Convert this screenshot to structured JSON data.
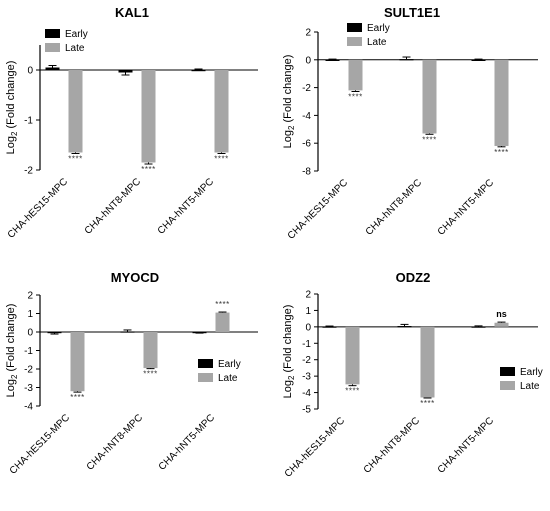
{
  "legend": {
    "early_label": "Early",
    "late_label": "Late"
  },
  "colors": {
    "early": "#000000",
    "late": "#a6a6a6",
    "axis": "#000000"
  },
  "chart_data": [
    {
      "type": "bar",
      "title": "KAL1",
      "ylabel": "Log2 (Fold change)",
      "ylim": [
        -2,
        0.5
      ],
      "yticks": [
        -2,
        -1,
        0
      ],
      "categories": [
        "CHA-hES15-MPC",
        "CHA-hNT8-MPC",
        "CHA-hNT5-MPC"
      ],
      "series": [
        {
          "name": "Early",
          "values": [
            0.05,
            -0.05,
            0.0
          ],
          "errors": [
            0.04,
            0.05,
            0.02
          ]
        },
        {
          "name": "Late",
          "values": [
            -1.65,
            -1.85,
            -1.65
          ],
          "errors": [
            0.02,
            0.03,
            0.02
          ]
        }
      ],
      "annotations": [
        "****",
        "****",
        "****"
      ],
      "legend_position": "top-left"
    },
    {
      "type": "bar",
      "title": "SULT1E1",
      "ylabel": "Log2 (Fold change)",
      "ylim": [
        -8,
        2
      ],
      "yticks": [
        -8,
        -6,
        -4,
        -2,
        0,
        2
      ],
      "categories": [
        "CHA-hES15-MPC",
        "CHA-hNT8-MPC",
        "CHA-hNT5-MPC"
      ],
      "series": [
        {
          "name": "Early",
          "values": [
            0.0,
            0.05,
            0.0
          ],
          "errors": [
            0.05,
            0.15,
            0.05
          ]
        },
        {
          "name": "Late",
          "values": [
            -2.2,
            -5.3,
            -6.2
          ],
          "errors": [
            0.08,
            0.06,
            0.06
          ]
        }
      ],
      "annotations": [
        "****",
        "****",
        "****"
      ],
      "legend_position": "top-left"
    },
    {
      "type": "bar",
      "title": "MYOCD",
      "ylabel": "Log2 (Fold change)",
      "ylim": [
        -4,
        2
      ],
      "yticks": [
        -4,
        -3,
        -2,
        -1,
        0,
        1,
        2
      ],
      "categories": [
        "CHA-hES15-MPC",
        "CHA-hNT8-MPC",
        "CHA-hNT5-MPC"
      ],
      "series": [
        {
          "name": "Early",
          "values": [
            -0.05,
            0.03,
            -0.03
          ],
          "errors": [
            0.06,
            0.08,
            0.03
          ]
        },
        {
          "name": "Late",
          "values": [
            -3.2,
            -1.95,
            1.05
          ],
          "errors": [
            0.05,
            0.03,
            0.03
          ]
        }
      ],
      "annotations": [
        "****",
        "****",
        "****"
      ],
      "legend_position": "bottom-right"
    },
    {
      "type": "bar",
      "title": "ODZ2",
      "ylabel": "Log2 (Fold change)",
      "ylim": [
        -5,
        2
      ],
      "yticks": [
        -5,
        -4,
        -3,
        -2,
        -1,
        0,
        1,
        2
      ],
      "categories": [
        "CHA-hES15-MPC",
        "CHA-hNT8-MPC",
        "CHA-hNT5-MPC"
      ],
      "series": [
        {
          "name": "Early",
          "values": [
            0.02,
            0.05,
            0.02
          ],
          "errors": [
            0.03,
            0.1,
            0.04
          ]
        },
        {
          "name": "Late",
          "values": [
            -3.5,
            -4.3,
            0.25
          ],
          "errors": [
            0.08,
            0.03,
            0.04
          ]
        }
      ],
      "annotations": [
        "****",
        "****",
        "ns"
      ],
      "legend_position": "bottom-right"
    }
  ]
}
